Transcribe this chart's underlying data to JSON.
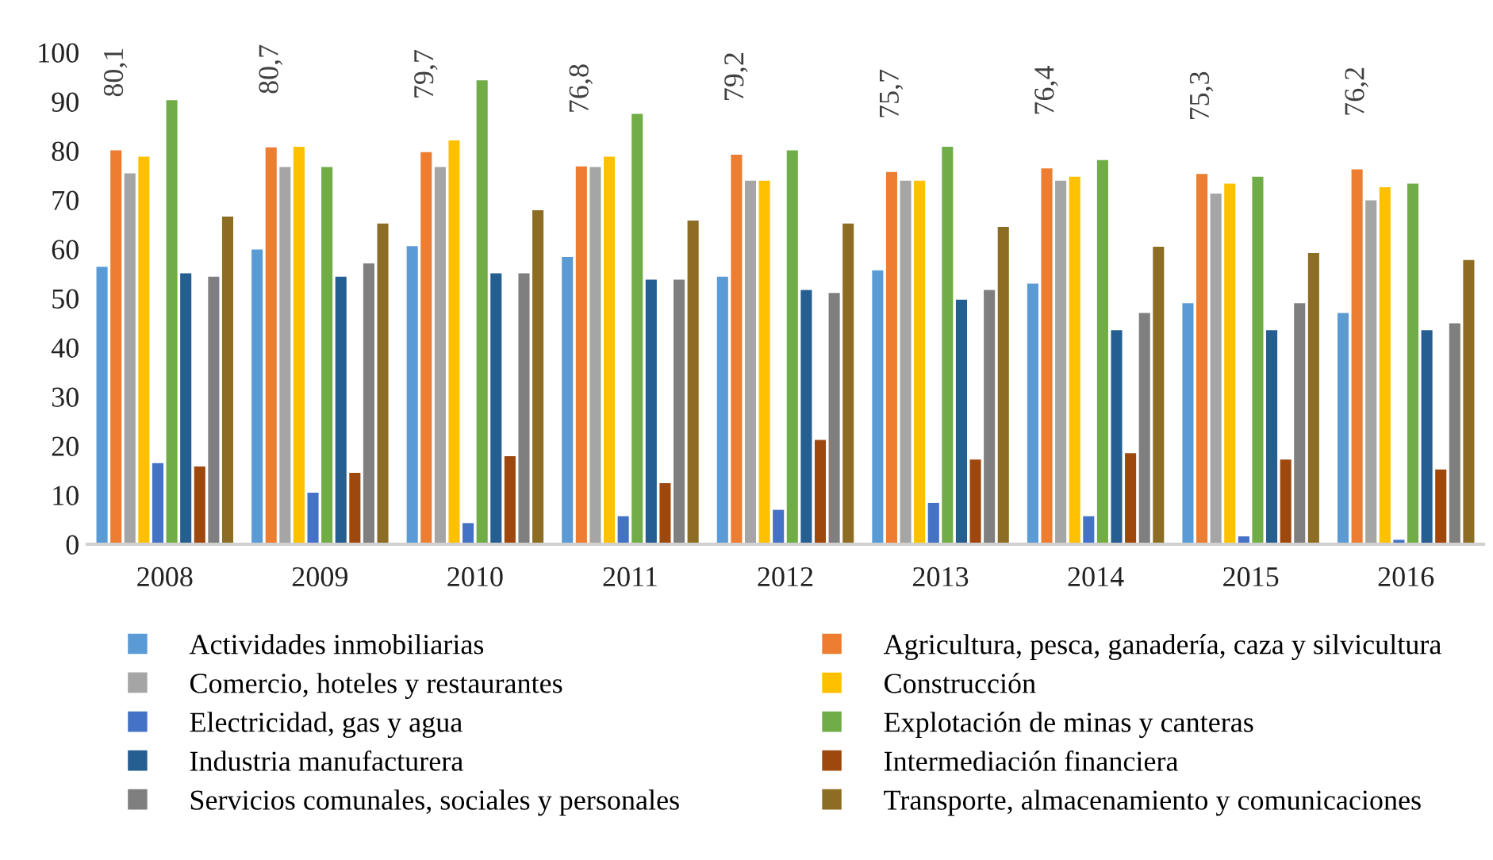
{
  "chart_data": {
    "type": "bar",
    "categories": [
      "2008",
      "2009",
      "2010",
      "2011",
      "2012",
      "2013",
      "2014",
      "2015",
      "2016"
    ],
    "ylim": [
      0,
      100
    ],
    "yticks": [
      0,
      10,
      20,
      30,
      40,
      50,
      60,
      70,
      80,
      90,
      100
    ],
    "grid": false,
    "legend": "bottom",
    "series": [
      {
        "name": "Actividades inmobiliarias",
        "color": "#5b9bd5",
        "values": [
          56.4,
          59.9,
          60.6,
          58.4,
          54.4,
          55.7,
          53.0,
          49.0,
          47.0
        ]
      },
      {
        "name": "Agricultura, pesca, ganadería, caza y silvicultura",
        "color": "#ed7d31",
        "values": [
          80.1,
          80.7,
          79.7,
          76.8,
          79.2,
          75.7,
          76.4,
          75.3,
          76.2
        ],
        "value_labels": [
          "80,1",
          "80,7",
          "79,7",
          "76,8",
          "79,2",
          "75,7",
          "76,4",
          "75,3",
          "76,2"
        ]
      },
      {
        "name": "Comercio, hoteles y restaurantes",
        "color": "#a5a5a5",
        "values": [
          75.4,
          76.7,
          76.7,
          76.7,
          73.9,
          73.9,
          73.9,
          71.3,
          69.9
        ]
      },
      {
        "name": "Construcción",
        "color": "#ffc000",
        "values": [
          78.8,
          80.8,
          82.1,
          78.8,
          73.9,
          73.9,
          74.7,
          73.3,
          72.6
        ]
      },
      {
        "name": "Electricidad, gas y agua",
        "color": "#4472c4",
        "values": [
          16.5,
          10.5,
          4.3,
          5.7,
          7.0,
          8.4,
          5.7,
          1.6,
          0.9
        ]
      },
      {
        "name": "Explotación de minas y canteras",
        "color": "#70ad47",
        "values": [
          90.3,
          76.7,
          94.3,
          87.5,
          80.1,
          80.8,
          78.1,
          74.7,
          73.3
        ]
      },
      {
        "name": "Industria manufacturera",
        "color": "#255e91",
        "values": [
          55.1,
          54.4,
          55.1,
          53.8,
          51.7,
          49.7,
          43.5,
          43.5,
          43.5
        ]
      },
      {
        "name": "Intermediación financiera",
        "color": "#9e480e",
        "values": [
          15.8,
          14.5,
          17.9,
          12.4,
          21.2,
          17.2,
          18.5,
          17.2,
          15.2
        ]
      },
      {
        "name": "Servicios comunales, sociales y personales",
        "color": "#7f7f7f",
        "values": [
          54.4,
          57.1,
          55.1,
          53.8,
          51.1,
          51.7,
          47.0,
          49.0,
          44.9
        ]
      },
      {
        "name": "Transporte, almacenamiento y comunicaciones",
        "color": "#8c6d23",
        "values": [
          66.6,
          65.2,
          67.9,
          65.8,
          65.2,
          64.5,
          60.5,
          59.2,
          57.8
        ]
      }
    ]
  }
}
